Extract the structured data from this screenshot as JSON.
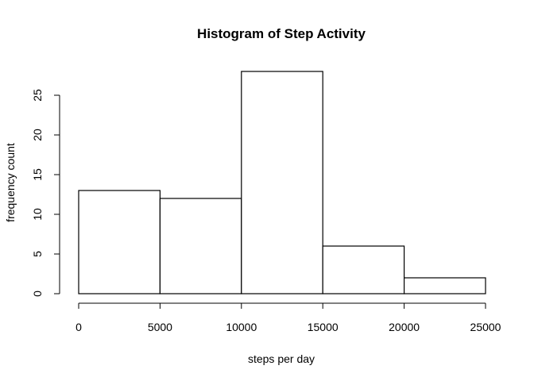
{
  "chart_data": {
    "type": "bar",
    "title": "Histogram of Step Activity",
    "xlabel": "steps per day",
    "ylabel": "frequency count",
    "bins": [
      {
        "from": 0,
        "to": 5000,
        "count": 13
      },
      {
        "from": 5000,
        "to": 10000,
        "count": 12
      },
      {
        "from": 10000,
        "to": 15000,
        "count": 28
      },
      {
        "from": 15000,
        "to": 20000,
        "count": 6
      },
      {
        "from": 20000,
        "to": 25000,
        "count": 2
      }
    ],
    "xlim": [
      0,
      25000
    ],
    "ylim": [
      0,
      28
    ],
    "x_ticks": [
      0,
      5000,
      10000,
      15000,
      20000,
      25000
    ],
    "y_ticks": [
      0,
      5,
      10,
      15,
      20,
      25
    ],
    "grid": false,
    "legend": "none",
    "bar_fill": "#ffffff",
    "bar_stroke": "#000000"
  }
}
